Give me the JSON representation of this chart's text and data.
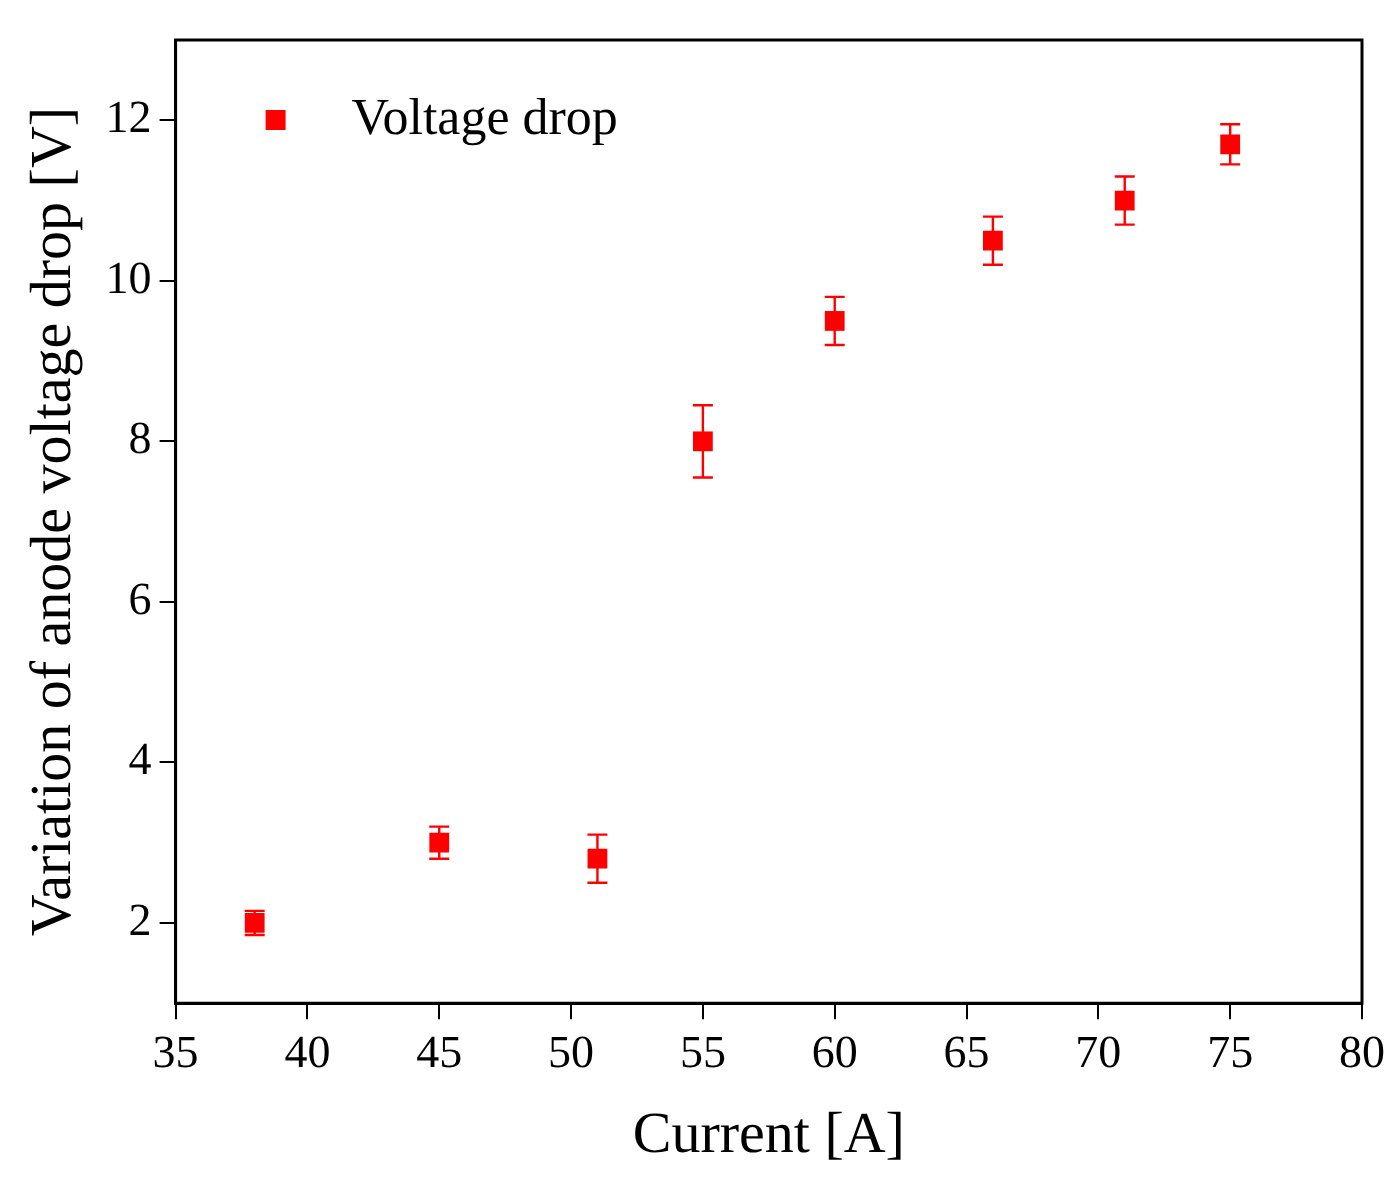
{
  "chart_data": {
    "type": "scatter",
    "xlabel": "Current [A]",
    "ylabel": "Variation of anode voltage drop [V]",
    "x": [
      38,
      45,
      51,
      55,
      60,
      66,
      71,
      75
    ],
    "series": [
      {
        "name": "Voltage drop",
        "color": "#ff0000",
        "values": [
          2,
          3,
          2.8,
          8,
          9.5,
          10.5,
          11,
          11.7
        ],
        "errors": [
          0.15,
          0.2,
          0.3,
          0.45,
          0.3,
          0.3,
          0.3,
          0.25
        ]
      }
    ],
    "xlim": [
      35,
      80
    ],
    "xticks": [
      35,
      40,
      45,
      50,
      55,
      60,
      65,
      70,
      75,
      80
    ],
    "ylim": [
      1,
      13
    ],
    "yticks": [
      2,
      4,
      6,
      8,
      10,
      12
    ],
    "marker": "square",
    "legend": "top left",
    "grid": false
  }
}
